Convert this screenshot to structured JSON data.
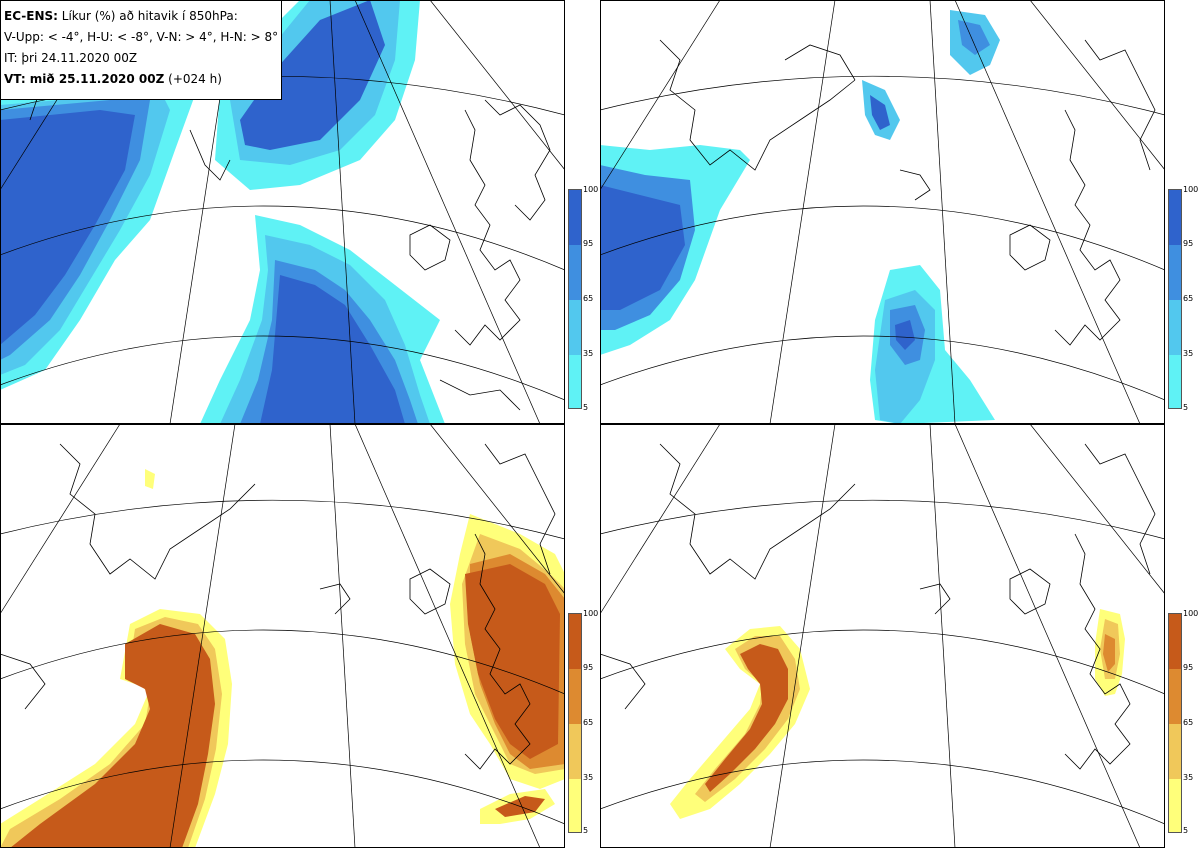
{
  "info": {
    "line1_bold": "EC-ENS:",
    "line1_rest": " Líkur (%) að hitavik í 850hPa:",
    "line2": "V-Upp: < -4°, H-U: < -8°, V-N: > 4°, H-N: > 8°",
    "line3": "IT: þri 24.11.2020 00Z",
    "line4_bold": "VT: mið 25.11.2020 00Z",
    "line4_rest": " (+024 h)"
  },
  "colorbar_ticks": [
    "100",
    "95",
    "65",
    "35",
    "5"
  ],
  "colors": {
    "blue_scale": [
      "#5ff2f5",
      "#52c8ee",
      "#3f8fe0",
      "#2f63cc"
    ],
    "orange_scale": [
      "#ffff7a",
      "#f0c85a",
      "#dd8a30",
      "#c65a1a"
    ]
  }
}
